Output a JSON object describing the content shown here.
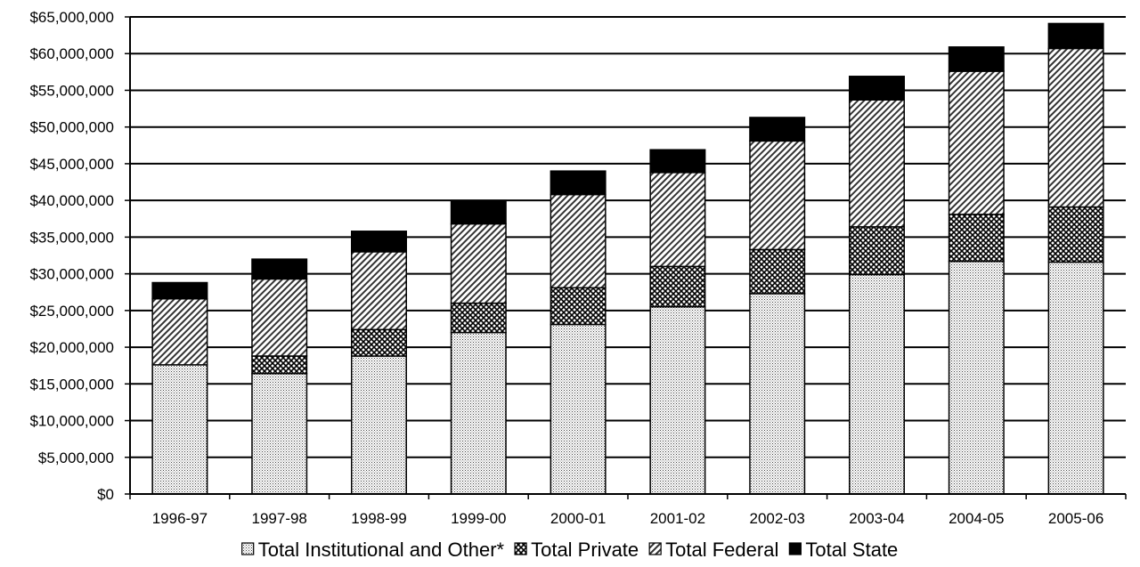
{
  "chart_data": {
    "type": "bar",
    "stacked": true,
    "categories": [
      "1996-97",
      "1997-98",
      "1998-99",
      "1999-00",
      "2000-01",
      "2001-02",
      "2002-03",
      "2003-04",
      "2004-05",
      "2005-06"
    ],
    "series": [
      {
        "name": "Total Institutional and Other*",
        "pattern": "dots",
        "values": [
          17600000,
          16400000,
          18800000,
          22000000,
          23100000,
          25500000,
          27300000,
          29900000,
          31700000,
          31600000
        ]
      },
      {
        "name": "Total Private",
        "pattern": "crosshatch",
        "values": [
          0,
          2400000,
          3600000,
          4000000,
          5000000,
          5500000,
          6000000,
          6500000,
          6400000,
          7500000
        ]
      },
      {
        "name": "Total Federal",
        "pattern": "diagonal",
        "values": [
          9000000,
          10500000,
          10600000,
          10800000,
          12700000,
          12800000,
          14800000,
          17300000,
          19500000,
          21600000
        ]
      },
      {
        "name": "Total State",
        "pattern": "solid",
        "values": [
          2200000,
          2700000,
          2800000,
          3200000,
          3200000,
          3100000,
          3200000,
          3200000,
          3300000,
          3400000
        ]
      }
    ],
    "ylim": [
      0,
      65000000
    ],
    "ytick_step": 5000000,
    "ytick_labels": [
      "$0",
      "$5,000,000",
      "$10,000,000",
      "$15,000,000",
      "$20,000,000",
      "$25,000,000",
      "$30,000,000",
      "$35,000,000",
      "$40,000,000",
      "$45,000,000",
      "$50,000,000",
      "$55,000,000",
      "$60,000,000",
      "$65,000,000"
    ],
    "grid": true,
    "legend_position": "bottom",
    "colors": {
      "fill_light": "#ffffff",
      "fill_dark": "#000000",
      "grid": "#000000"
    }
  }
}
